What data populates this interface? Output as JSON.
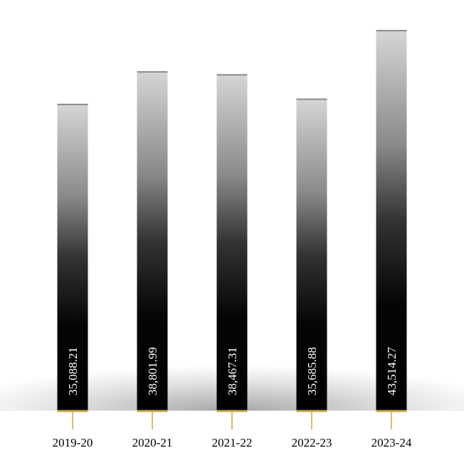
{
  "chart_data": {
    "type": "bar",
    "title": "",
    "xlabel": "",
    "ylabel": "",
    "categories": [
      "2019-20",
      "2020-21",
      "2021-22",
      "2022-23",
      "2023-24"
    ],
    "values": [
      35088.21,
      38801.99,
      38467.31,
      35685.88,
      43514.27
    ],
    "value_labels": [
      "35,088.21",
      "38,801.99",
      "38,467.31",
      "35,685.88",
      "43,514.27"
    ],
    "ylim": [
      0,
      45800
    ],
    "grid": false,
    "legend": "none",
    "colors": {
      "bar_top": "#d6d6d6",
      "bar_bottom": "#000000",
      "bar_edge": "#8a8a8a",
      "axis_tick": "#c8a84b"
    }
  }
}
